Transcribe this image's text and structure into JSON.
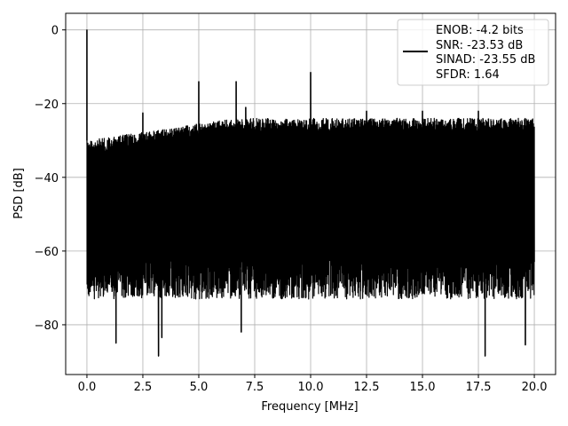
{
  "chart_data": {
    "type": "line",
    "title": "",
    "xlabel": "Frequency [MHz]",
    "ylabel": "PSD [dB]",
    "xlim": [
      -0.95,
      20.95
    ],
    "ylim": [
      -93.5,
      4.5
    ],
    "xticks": [
      0.0,
      2.5,
      5.0,
      7.5,
      10.0,
      12.5,
      15.0,
      17.5,
      20.0
    ],
    "xtick_labels": [
      "0.0",
      "2.5",
      "5.0",
      "7.5",
      "10.0",
      "12.5",
      "15.0",
      "17.5",
      "20.0"
    ],
    "yticks": [
      0,
      -20,
      -40,
      -60,
      -80
    ],
    "ytick_labels": [
      "0",
      "−20",
      "−40",
      "−60",
      "−80"
    ],
    "grid": true,
    "legend_position": "top-right",
    "line_color": "#000000",
    "series": [
      {
        "name": "ENOB: -4.2 bits\nSNR: -23.53 dB\nSINAD: -23.55 dB\nSFDR: 1.64",
        "description_noise_floor": {
          "x_range": [
            0.0,
            20.0
          ],
          "upper_envelope_db": [
            -30,
            -24
          ],
          "lower_envelope_db": [
            -65,
            -85
          ]
        },
        "peaks": [
          {
            "x": 0.0,
            "y": 0.0
          },
          {
            "x": 2.5,
            "y": -22.5
          },
          {
            "x": 5.0,
            "y": -14.0
          },
          {
            "x": 6.67,
            "y": -14.0
          },
          {
            "x": 7.1,
            "y": -21.0
          },
          {
            "x": 10.0,
            "y": -11.5
          },
          {
            "x": 12.5,
            "y": -22.0
          },
          {
            "x": 15.0,
            "y": -22.0
          },
          {
            "x": 17.5,
            "y": -22.0
          }
        ],
        "dips": [
          {
            "x": 3.2,
            "y": -88.5
          },
          {
            "x": 3.35,
            "y": -83.5
          },
          {
            "x": 1.3,
            "y": -85.0
          },
          {
            "x": 6.9,
            "y": -82.0
          },
          {
            "x": 17.8,
            "y": -88.5
          },
          {
            "x": 19.6,
            "y": -85.5
          }
        ]
      }
    ],
    "legend_lines": [
      "ENOB: -4.2 bits",
      "SNR: -23.53 dB",
      "SINAD: -23.55 dB",
      "SFDR: 1.64"
    ]
  }
}
